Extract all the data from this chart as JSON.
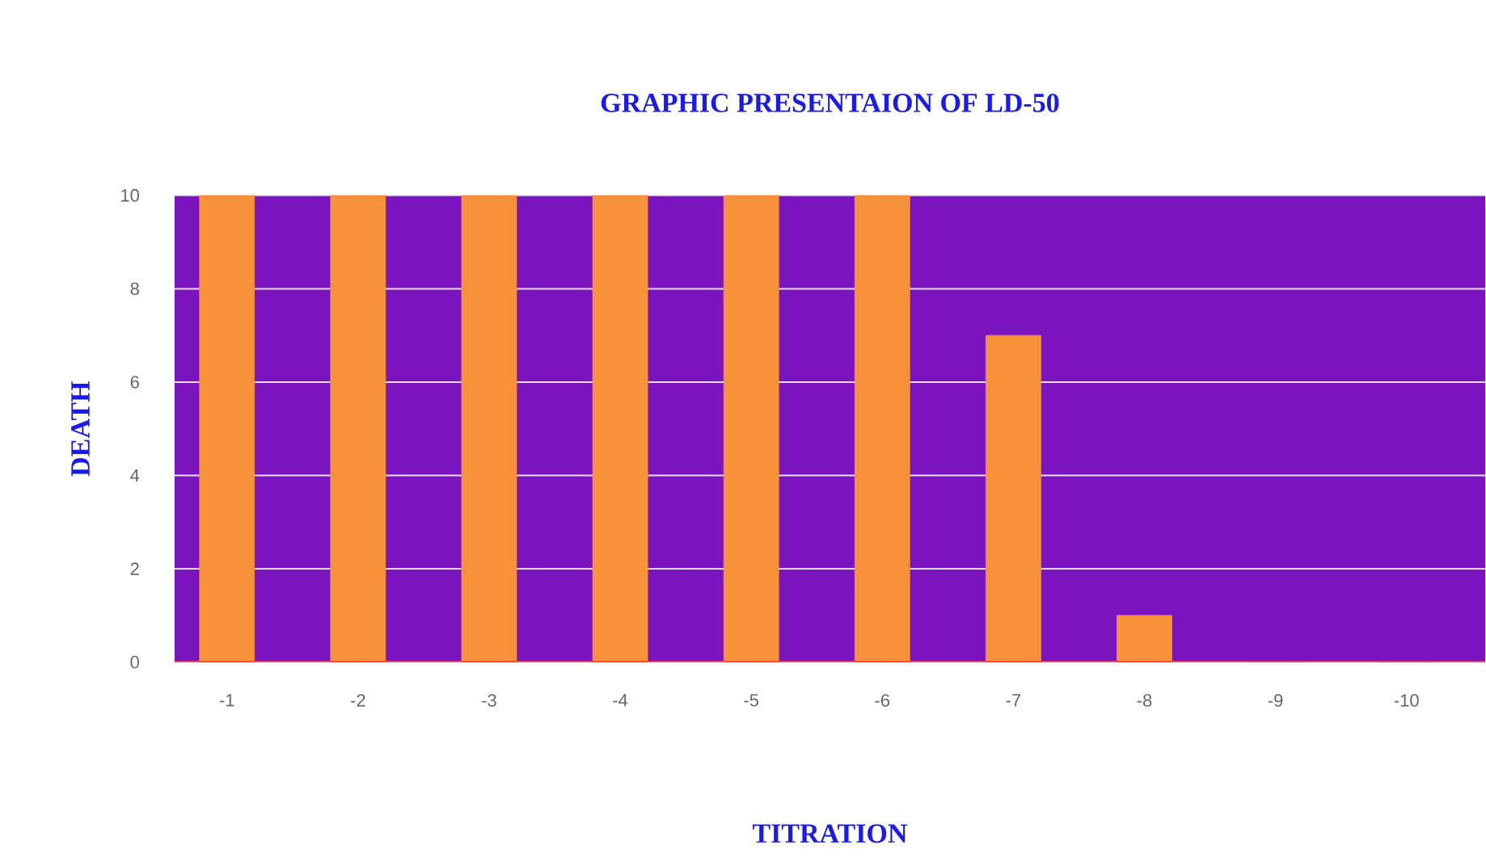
{
  "chart_data": {
    "type": "bar",
    "title": "GRAPHIC PRESENTAION OF LD-50",
    "xlabel": "TITRATION",
    "ylabel": "DEATH",
    "categories": [
      "-1",
      "-2",
      "-3",
      "-4",
      "-5",
      "-6",
      "-7",
      "-8",
      "-9",
      "-10"
    ],
    "values": [
      10,
      10,
      10,
      10,
      10,
      10,
      7,
      1,
      0,
      0
    ],
    "color": "#f7913a",
    "ylim": [
      0,
      10
    ],
    "yticks": [
      0,
      2,
      4,
      6,
      8,
      10
    ],
    "grid": "y"
  }
}
